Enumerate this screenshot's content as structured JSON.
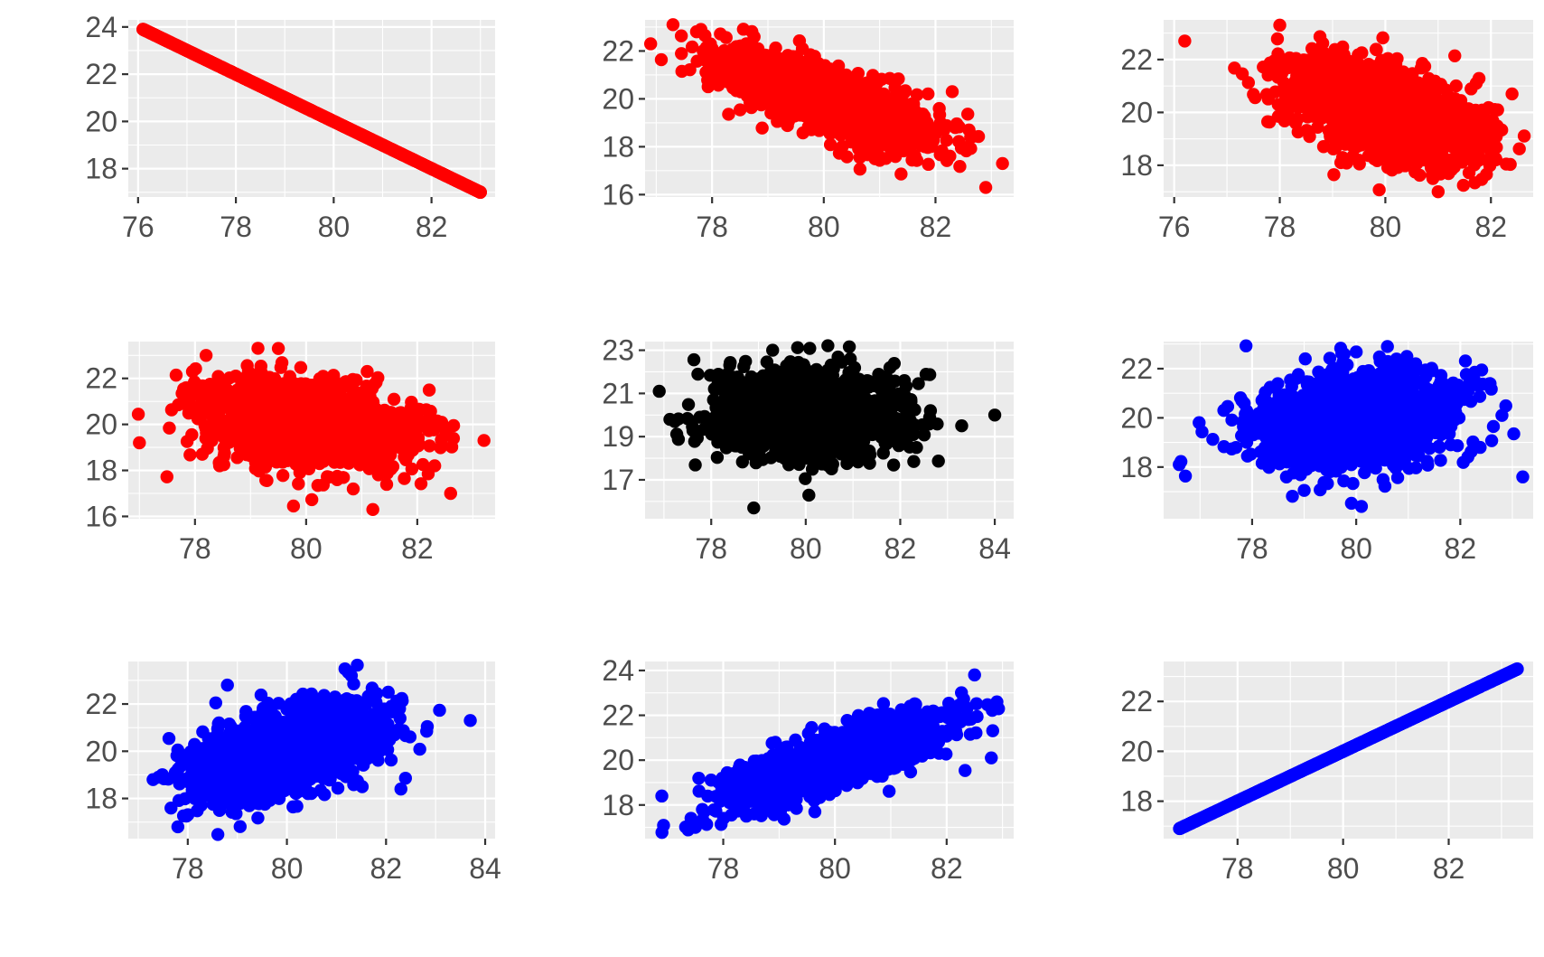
{
  "chart_data": [
    {
      "type": "scatter",
      "panel": "row1-col1",
      "color": "#ff0000",
      "xlim": [
        75.8,
        83.3
      ],
      "ylim": [
        16.8,
        24.3
      ],
      "xticks": [
        76,
        78,
        80,
        82
      ],
      "yticks": [
        18,
        20,
        22,
        24
      ],
      "x_tick_labels": [
        "76",
        "78",
        "80",
        "82"
      ],
      "y_tick_labels": [
        "18",
        "20",
        "22",
        "24"
      ],
      "relationship": "perfect negative linear",
      "points": [
        [
          76.1,
          23.9
        ],
        [
          76.6,
          23.4
        ],
        [
          76.9,
          23.1
        ],
        [
          77.2,
          22.8
        ],
        [
          77.4,
          22.6
        ],
        [
          78.0,
          22.0
        ],
        [
          79.0,
          21.0
        ],
        [
          80.0,
          20.0
        ],
        [
          81.0,
          19.0
        ],
        [
          82.0,
          18.0
        ],
        [
          82.6,
          17.4
        ],
        [
          83.0,
          17.0
        ]
      ]
    },
    {
      "type": "scatter",
      "panel": "row1-col2",
      "color": "#ff0000",
      "xlim": [
        76.8,
        83.4
      ],
      "ylim": [
        15.9,
        23.3
      ],
      "xticks": [
        78,
        80,
        82
      ],
      "yticks": [
        16,
        18,
        20,
        22
      ],
      "x_tick_labels": [
        "78",
        "80",
        "82"
      ],
      "y_tick_labels": [
        "16",
        "18",
        "20",
        "22"
      ],
      "relationship": "strong negative",
      "points": [
        [
          76.9,
          22.3
        ],
        [
          77.3,
          23.1
        ],
        [
          77.8,
          22.9
        ],
        [
          82.9,
          16.3
        ],
        [
          83.2,
          17.3
        ],
        [
          82.6,
          18.7
        ],
        [
          82.3,
          20.3
        ]
      ]
    },
    {
      "type": "scatter",
      "panel": "row1-col3",
      "color": "#ff0000",
      "xlim": [
        75.8,
        82.8
      ],
      "ylim": [
        16.8,
        23.5
      ],
      "xticks": [
        76,
        78,
        80,
        82
      ],
      "yticks": [
        18,
        20,
        22
      ],
      "x_tick_labels": [
        "76",
        "78",
        "80",
        "82"
      ],
      "y_tick_labels": [
        "18",
        "20",
        "22"
      ],
      "relationship": "moderate negative",
      "points": [
        [
          76.2,
          22.7
        ],
        [
          78.0,
          23.3
        ],
        [
          81.0,
          17.0
        ],
        [
          82.4,
          20.7
        ]
      ]
    },
    {
      "type": "scatter",
      "panel": "row2-col1",
      "color": "#ff0000",
      "xlim": [
        76.8,
        83.4
      ],
      "ylim": [
        15.9,
        23.6
      ],
      "xticks": [
        78,
        80,
        82
      ],
      "yticks": [
        16,
        18,
        20,
        22
      ],
      "x_tick_labels": [
        "78",
        "80",
        "82"
      ],
      "y_tick_labels": [
        "16",
        "18",
        "20",
        "22"
      ],
      "relationship": "weak negative",
      "points": [
        [
          77.0,
          19.2
        ],
        [
          78.2,
          23.0
        ],
        [
          79.5,
          23.3
        ],
        [
          81.2,
          16.3
        ],
        [
          82.6,
          17.0
        ],
        [
          83.2,
          19.3
        ]
      ]
    },
    {
      "type": "scatter",
      "panel": "row2-col2",
      "color": "#000000",
      "xlim": [
        76.6,
        84.4
      ],
      "ylim": [
        15.2,
        23.4
      ],
      "xticks": [
        78,
        80,
        82,
        84
      ],
      "yticks": [
        17,
        19,
        21,
        23
      ],
      "x_tick_labels": [
        "78",
        "80",
        "82",
        "84"
      ],
      "y_tick_labels": [
        "17",
        "19",
        "21",
        "23"
      ],
      "relationship": "no correlation",
      "points": [
        [
          76.9,
          21.1
        ],
        [
          78.9,
          15.7
        ],
        [
          79.3,
          23.0
        ],
        [
          84.0,
          20.0
        ],
        [
          83.3,
          19.5
        ]
      ]
    },
    {
      "type": "scatter",
      "panel": "row2-col3",
      "color": "#0000ff",
      "xlim": [
        76.3,
        83.4
      ],
      "ylim": [
        15.9,
        23.1
      ],
      "xticks": [
        78,
        80,
        82
      ],
      "yticks": [
        18,
        20,
        22
      ],
      "x_tick_labels": [
        "78",
        "80",
        "82"
      ],
      "y_tick_labels": [
        "18",
        "20",
        "22"
      ],
      "relationship": "weak positive",
      "points": [
        [
          76.6,
          18.1
        ],
        [
          80.1,
          16.4
        ],
        [
          80.6,
          22.9
        ],
        [
          83.2,
          17.6
        ]
      ]
    },
    {
      "type": "scatter",
      "panel": "row3-col1",
      "color": "#0000ff",
      "xlim": [
        76.8,
        84.2
      ],
      "ylim": [
        16.3,
        23.8
      ],
      "xticks": [
        78,
        80,
        82,
        84
      ],
      "yticks": [
        18,
        20,
        22
      ],
      "x_tick_labels": [
        "78",
        "80",
        "82",
        "84"
      ],
      "y_tick_labels": [
        "18",
        "20",
        "22"
      ],
      "relationship": "moderate positive",
      "points": [
        [
          77.3,
          18.8
        ],
        [
          77.8,
          16.8
        ],
        [
          78.8,
          22.8
        ],
        [
          81.3,
          23.2
        ],
        [
          83.7,
          21.3
        ],
        [
          82.3,
          18.4
        ]
      ]
    },
    {
      "type": "scatter",
      "panel": "row3-col2",
      "color": "#0000ff",
      "xlim": [
        76.6,
        83.2
      ],
      "ylim": [
        16.5,
        24.4
      ],
      "xticks": [
        78,
        80,
        82
      ],
      "yticks": [
        18,
        20,
        22,
        24
      ],
      "x_tick_labels": [
        "78",
        "80",
        "82"
      ],
      "y_tick_labels": [
        "18",
        "20",
        "22",
        "24"
      ],
      "relationship": "strong positive",
      "points": [
        [
          76.9,
          18.4
        ],
        [
          77.5,
          17.0
        ],
        [
          82.5,
          23.8
        ],
        [
          82.9,
          22.6
        ],
        [
          82.8,
          20.1
        ]
      ]
    },
    {
      "type": "scatter",
      "panel": "row3-col3",
      "color": "#0000ff",
      "xlim": [
        76.6,
        83.6
      ],
      "ylim": [
        16.5,
        23.6
      ],
      "xticks": [
        78,
        80,
        82
      ],
      "yticks": [
        18,
        20,
        22
      ],
      "x_tick_labels": [
        "78",
        "80",
        "82"
      ],
      "y_tick_labels": [
        "18",
        "20",
        "22"
      ],
      "relationship": "perfect positive linear",
      "points": [
        [
          76.9,
          16.9
        ],
        [
          77.5,
          17.5
        ],
        [
          78.0,
          18.0
        ],
        [
          79.0,
          19.0
        ],
        [
          80.0,
          20.0
        ],
        [
          81.0,
          21.0
        ],
        [
          82.0,
          22.0
        ],
        [
          82.8,
          22.8
        ],
        [
          83.3,
          23.3
        ]
      ]
    }
  ]
}
